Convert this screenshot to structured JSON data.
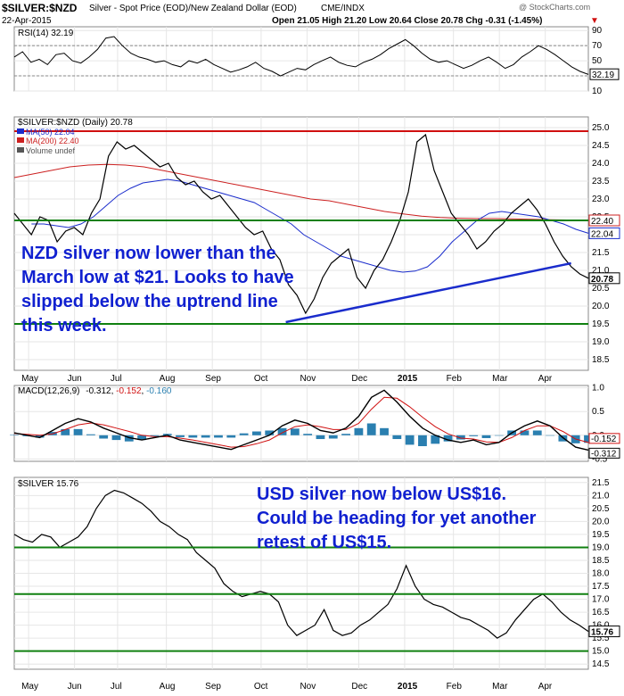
{
  "header": {
    "symbol": "$SILVER:$NZD",
    "description": "Silver - Spot Price (EOD)/New Zealand Dollar (EOD)",
    "exchange": "CME/INDX",
    "date": "22-Apr-2015",
    "ohlc": "Open 21.05  High 21.20  Low 20.64  Close 20.78  Chg -0.31 (-1.45%)",
    "watermark": "@ StockCharts.com"
  },
  "chart_data": [
    {
      "type": "line",
      "panel": "rsi",
      "title": "RSI(14) 32.19",
      "value_label": "32.19",
      "yticks": [
        10,
        30,
        50,
        70,
        90
      ],
      "levels": [
        30,
        70
      ],
      "ylim": [
        10,
        95
      ],
      "values": [
        55,
        62,
        48,
        52,
        45,
        58,
        60,
        50,
        47,
        55,
        65,
        80,
        82,
        70,
        60,
        55,
        52,
        48,
        50,
        45,
        42,
        50,
        47,
        52,
        45,
        40,
        35,
        38,
        42,
        48,
        40,
        36,
        30,
        35,
        40,
        38,
        45,
        50,
        55,
        48,
        44,
        42,
        48,
        52,
        58,
        66,
        72,
        78,
        70,
        60,
        52,
        48,
        50,
        45,
        40,
        44,
        50,
        55,
        48,
        40,
        45,
        55,
        62,
        70,
        65,
        58,
        50,
        42,
        36,
        32
      ]
    },
    {
      "type": "line",
      "panel": "price_nzd",
      "title": "$SILVER:$NZD (Daily) 20.78",
      "legend": [
        {
          "name": "MA(50) 22.04",
          "color": "#1a2ccc"
        },
        {
          "name": "MA(200) 22.40",
          "color": "#cc2020"
        },
        {
          "name": "Volume undef",
          "color": "#555555"
        }
      ],
      "yticks": [
        18.5,
        19.0,
        19.5,
        20.0,
        20.5,
        21.0,
        21.5,
        22.0,
        22.5,
        23.0,
        23.5,
        24.0,
        24.5,
        25.0
      ],
      "ylim": [
        18.2,
        25.3
      ],
      "right_labels": [
        {
          "text": "22.40",
          "value": 22.4,
          "color": "#cc2020"
        },
        {
          "text": "22.04",
          "value": 22.04,
          "color": "#1a2ccc"
        },
        {
          "text": "20.78",
          "value": 20.78,
          "color": "#000000"
        }
      ],
      "horizontal_lines": [
        24.9,
        22.4,
        19.5
      ],
      "trendline": {
        "from": {
          "x": 0.473,
          "y": 19.55
        },
        "to": {
          "x": 0.97,
          "y": 21.2
        }
      },
      "close": [
        22.6,
        22.3,
        22.0,
        22.5,
        22.4,
        21.8,
        22.1,
        22.2,
        22.0,
        22.6,
        23.0,
        24.2,
        24.6,
        24.4,
        24.5,
        24.3,
        24.1,
        23.9,
        24.0,
        23.6,
        23.4,
        23.5,
        23.2,
        23.0,
        23.1,
        22.8,
        22.5,
        22.2,
        22.0,
        22.1,
        21.6,
        21.3,
        20.6,
        20.3,
        19.8,
        20.2,
        20.8,
        21.2,
        21.4,
        21.6,
        20.8,
        20.5,
        21.0,
        21.3,
        21.8,
        22.4,
        23.2,
        24.6,
        24.8,
        23.8,
        23.2,
        22.6,
        22.3,
        22.0,
        21.6,
        21.8,
        22.1,
        22.3,
        22.6,
        22.8,
        23.0,
        22.7,
        22.3,
        21.8,
        21.4,
        21.1,
        20.9,
        20.78
      ],
      "ma50": [
        22.3,
        22.3,
        22.25,
        22.2,
        22.3,
        22.5,
        22.8,
        23.1,
        23.3,
        23.45,
        23.5,
        23.55,
        23.5,
        23.4,
        23.3,
        23.2,
        23.1,
        23.0,
        22.9,
        22.7,
        22.5,
        22.3,
        22.0,
        21.8,
        21.6,
        21.4,
        21.3,
        21.2,
        21.1,
        21.0,
        20.95,
        20.98,
        21.1,
        21.4,
        21.8,
        22.1,
        22.4,
        22.6,
        22.65,
        22.6,
        22.55,
        22.5,
        22.4,
        22.3,
        22.15,
        22.04
      ],
      "ma200": [
        23.6,
        23.7,
        23.8,
        23.9,
        23.95,
        23.97,
        23.95,
        23.9,
        23.8,
        23.7,
        23.6,
        23.5,
        23.4,
        23.3,
        23.2,
        23.1,
        23.0,
        22.95,
        22.85,
        22.75,
        22.65,
        22.58,
        22.52,
        22.48,
        22.46,
        22.45,
        22.45,
        22.44,
        22.43,
        22.42,
        22.41,
        22.4
      ]
    },
    {
      "type": "line",
      "panel": "macd",
      "title": "MACD(12,26,9)",
      "values_text": [
        "-0.312",
        "-0.152",
        "-0.160"
      ],
      "yticks": [
        -0.5,
        0.0,
        0.5,
        1.0
      ],
      "ylim": [
        -0.55,
        1.05
      ],
      "right_labels": [
        "-0.152",
        "-0.312"
      ],
      "macd": [
        0.05,
        0.0,
        -0.05,
        0.1,
        0.25,
        0.35,
        0.28,
        0.15,
        0.05,
        -0.05,
        -0.1,
        -0.05,
        0.0,
        -0.1,
        -0.15,
        -0.2,
        -0.25,
        -0.3,
        -0.2,
        -0.1,
        0.0,
        0.2,
        0.32,
        0.25,
        0.1,
        0.05,
        0.15,
        0.4,
        0.8,
        0.95,
        0.7,
        0.4,
        0.15,
        0.0,
        -0.1,
        -0.15,
        -0.1,
        -0.2,
        -0.15,
        0.05,
        0.2,
        0.3,
        0.2,
        -0.05,
        -0.25,
        -0.312
      ],
      "signal": [
        0.04,
        0.02,
        0.0,
        0.03,
        0.12,
        0.22,
        0.26,
        0.22,
        0.15,
        0.08,
        0.0,
        -0.03,
        -0.03,
        -0.06,
        -0.1,
        -0.15,
        -0.2,
        -0.25,
        -0.24,
        -0.18,
        -0.1,
        0.05,
        0.18,
        0.22,
        0.18,
        0.12,
        0.12,
        0.25,
        0.55,
        0.8,
        0.78,
        0.6,
        0.38,
        0.18,
        0.03,
        -0.06,
        -0.08,
        -0.14,
        -0.15,
        -0.05,
        0.1,
        0.2,
        0.2,
        0.08,
        -0.08,
        -0.152
      ]
    },
    {
      "type": "line",
      "panel": "price_usd",
      "title": "$SILVER 15.76",
      "value_label": "15.76",
      "yticks": [
        14.5,
        15.0,
        15.5,
        16.0,
        16.5,
        17.0,
        17.5,
        18.0,
        18.5,
        19.0,
        19.5,
        20.0,
        20.5,
        21.0,
        21.5
      ],
      "ylim": [
        14.3,
        21.7
      ],
      "horizontal_lines": [
        19.0,
        17.2,
        15.0
      ],
      "close": [
        19.5,
        19.3,
        19.2,
        19.5,
        19.4,
        19.0,
        19.2,
        19.4,
        19.8,
        20.5,
        21.0,
        21.2,
        21.1,
        20.9,
        20.7,
        20.4,
        20.0,
        19.8,
        19.5,
        19.3,
        18.8,
        18.5,
        18.2,
        17.6,
        17.3,
        17.1,
        17.2,
        17.3,
        17.2,
        16.9,
        16.0,
        15.6,
        15.8,
        16.0,
        16.6,
        15.8,
        15.6,
        15.7,
        16.0,
        16.2,
        16.5,
        16.8,
        17.4,
        18.3,
        17.5,
        17.0,
        16.8,
        16.7,
        16.5,
        16.3,
        16.2,
        16.0,
        15.8,
        15.5,
        15.7,
        16.2,
        16.6,
        17.0,
        17.2,
        16.9,
        16.5,
        16.2,
        16.0,
        15.76
      ]
    }
  ],
  "x_axis_labels": [
    "May",
    "Jun",
    "Jul",
    "Aug",
    "Sep",
    "Oct",
    "Nov",
    "Dec",
    "2015",
    "Feb",
    "Mar",
    "Apr"
  ],
  "annotations": {
    "nzd": [
      "NZD silver now lower than the",
      "March low at $21. Looks to have",
      "slipped below the uptrend line",
      "this week."
    ],
    "usd": [
      "USD silver now below US$16.",
      "Could be heading for yet another",
      "retest of US$15."
    ]
  },
  "colors": {
    "green_line": "#108010",
    "red_line": "#d01010",
    "ma50": "#1a2ccc",
    "ma200": "#cc2020",
    "trend": "#1a2ccc",
    "annotation": "#1020d0",
    "hist": "#2a7fb0"
  }
}
